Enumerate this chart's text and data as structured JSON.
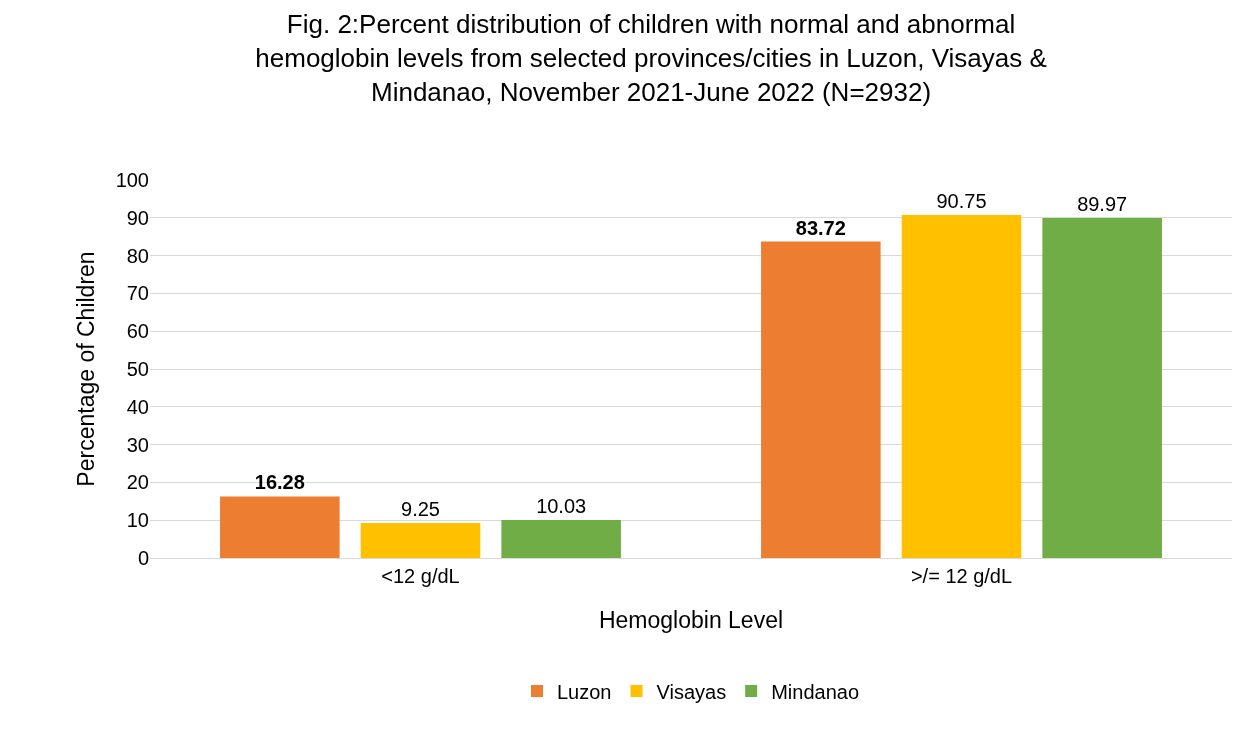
{
  "chart_data": {
    "type": "bar",
    "title": "Fig. 2:Percent distribution of children with normal and abnormal hemoglobin levels from selected provinces/cities in Luzon, Visayas & Mindanao, November 2021-June 2022 (N=2932)",
    "xlabel": "Hemoglobin Level",
    "ylabel": "Percentage of Children",
    "categories": [
      "<12 g/dL",
      ">/= 12 g/dL"
    ],
    "series": [
      {
        "name": "Luzon",
        "color": "#ed7d31",
        "values": [
          16.28,
          83.72
        ]
      },
      {
        "name": "Visayas",
        "color": "#ffc000",
        "values": [
          9.25,
          90.75
        ]
      },
      {
        "name": "Mindanao",
        "color": "#70ad47",
        "values": [
          10.03,
          89.97
        ]
      }
    ],
    "ylim": [
      0,
      100
    ],
    "yticks": [
      0,
      10,
      20,
      30,
      40,
      50,
      60,
      70,
      80,
      90,
      100
    ],
    "grid": "y",
    "legend": "bottom",
    "data_labels": true
  }
}
